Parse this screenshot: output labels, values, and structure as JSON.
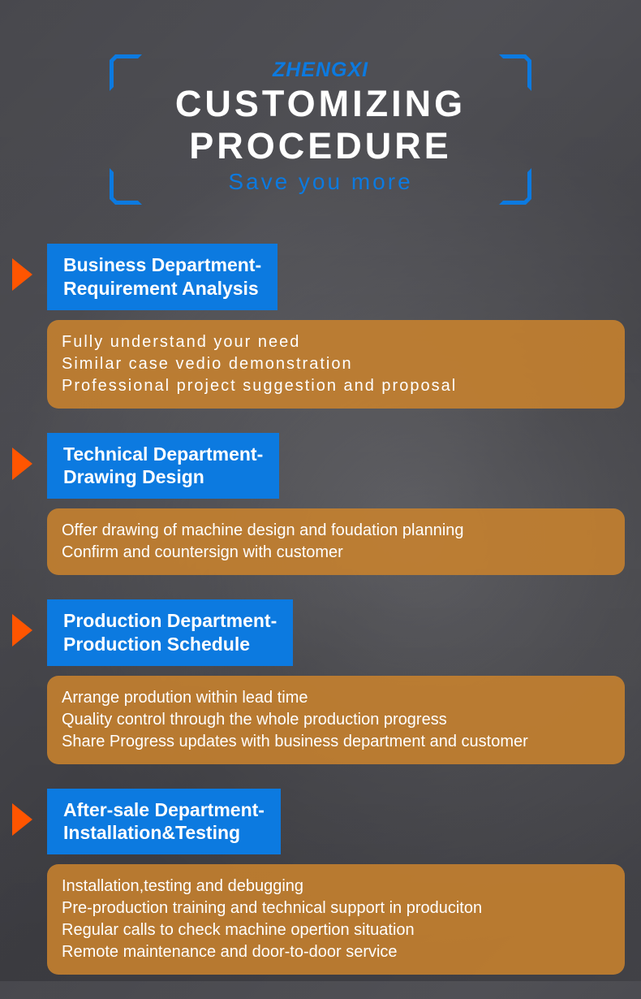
{
  "header": {
    "brand": "ZHENGXI",
    "title_line1": "CUSTOMIZING",
    "title_line2": "PROCEDURE",
    "subtitle": "Save you more",
    "accent_color": "#0c7ae0",
    "title_color": "#ffffff"
  },
  "sections": [
    {
      "header_line1": "Business Department-",
      "header_line2": "Requirement Analysis",
      "header_bg": "#0c7ae0",
      "content_bg": "rgba(200, 130, 45, 0.88)",
      "arrow_color": "#ff5500",
      "spaced": true,
      "lines": [
        "Fully understand your need",
        "Similar case vedio demonstration",
        "Professional project suggestion and proposal"
      ]
    },
    {
      "header_line1": "Technical Department-",
      "header_line2": "Drawing Design",
      "header_bg": "#0c7ae0",
      "content_bg": "rgba(200, 130, 45, 0.88)",
      "arrow_color": "#ff5500",
      "spaced": false,
      "lines": [
        "Offer drawing of machine design and foudation planning",
        "Confirm and countersign with customer"
      ]
    },
    {
      "header_line1": "Production Department-",
      "header_line2": "Production Schedule",
      "header_bg": "#0c7ae0",
      "content_bg": "rgba(200, 130, 45, 0.88)",
      "arrow_color": "#ff5500",
      "spaced": false,
      "lines": [
        "Arrange prodution within lead time",
        "Quality control through the whole production progress",
        "Share Progress updates with business department and customer"
      ]
    },
    {
      "header_line1": "After-sale Department-",
      "header_line2": "Installation&Testing",
      "header_bg": "#0c7ae0",
      "content_bg": "rgba(200, 130, 45, 0.88)",
      "arrow_color": "#ff5500",
      "spaced": false,
      "lines": [
        "Installation,testing and debugging",
        "Pre-production training and technical support in produciton",
        "Regular calls to check machine opertion situation",
        "Remote maintenance and door-to-door service"
      ]
    }
  ]
}
